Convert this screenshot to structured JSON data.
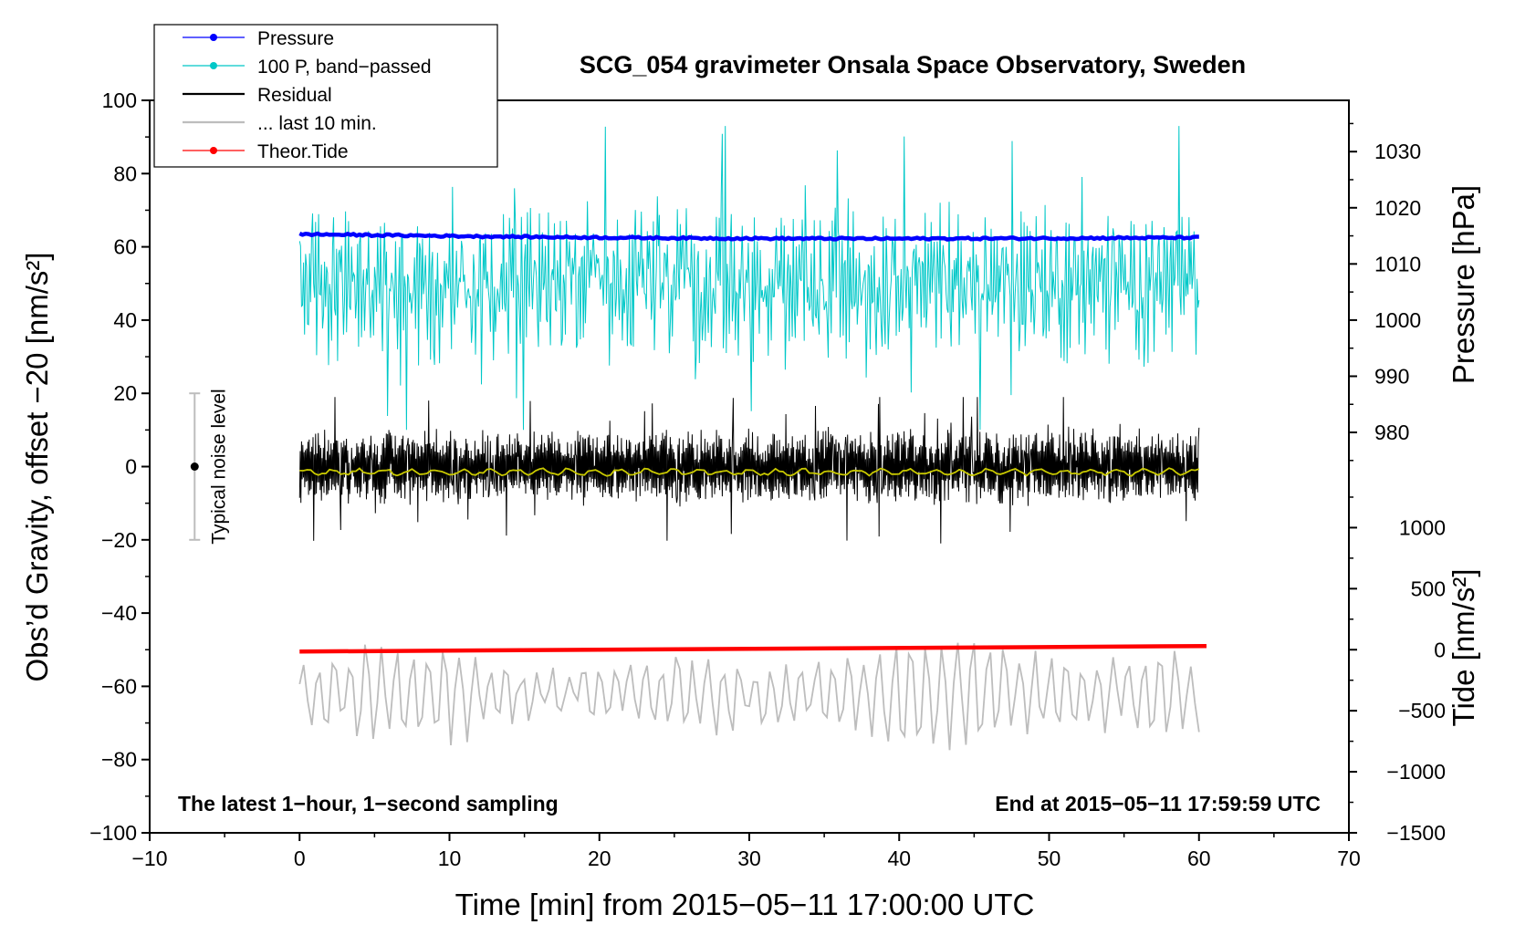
{
  "chart_data": {
    "type": "line",
    "title": "SCG_054 gravimeter Onsala Space Observatory, Sweden",
    "xlabel": "Time [min] from 2015−05−11 17:00:00 UTC",
    "ylabel_left": "Obs’d Gravity, offset −20 [nm/s²]",
    "ylabel_right_pressure": "Pressure [hPa]",
    "ylabel_right_tide": "Tide [nm/s²]",
    "xlim": [
      -10,
      70
    ],
    "ylim": [
      -100,
      100
    ],
    "x_ticks": [
      "−10",
      "0",
      "10",
      "20",
      "30",
      "40",
      "50",
      "60",
      "70"
    ],
    "y_ticks": [
      "−100",
      "−80",
      "−60",
      "−40",
      "−20",
      "0",
      "20",
      "40",
      "60",
      "80",
      "100"
    ],
    "pressure_axis": {
      "ticks": [
        "980",
        "990",
        "1000",
        "1010",
        "1020",
        "1030"
      ],
      "values": [
        980,
        990,
        1000,
        1010,
        1020,
        1030
      ],
      "gravity_at_1000": 40.0,
      "gravity_per_hpa": 1.5333
    },
    "tide_axis": {
      "ticks": [
        "−1500",
        "−1000",
        "−500",
        "0",
        "500",
        "1000"
      ],
      "values": [
        -1500,
        -1000,
        -500,
        0,
        500,
        1000
      ],
      "gravity_at_zero": -50.0,
      "gravity_per_unit": 0.03333
    },
    "legend": [
      {
        "label": "Pressure",
        "color": "#0000ff",
        "marker": true
      },
      {
        "label": "100 P, band−passed",
        "color": "#00c8c8",
        "marker": true
      },
      {
        "label": "Residual",
        "color": "#000000",
        "marker": false
      },
      {
        "label": "... last 10 min.",
        "color": "#bdbdbd",
        "marker": false
      },
      {
        "label": "Theor.Tide",
        "color": "#ff0000",
        "marker": true
      }
    ],
    "series": [
      {
        "name": "Pressure",
        "color": "#0000ff",
        "x_range": [
          0,
          60
        ],
        "start_hpa": 1015.3,
        "end_hpa": 1014.7,
        "min_hpa": 1014.3,
        "plotted_as_gravity": [
          69.5,
          68.5
        ]
      },
      {
        "name": "100 P, band−passed",
        "color": "#00c8c8",
        "x_range": [
          0,
          60
        ],
        "center_gravity": 50,
        "min_gravity": 10,
        "max_gravity": 93
      },
      {
        "name": "Residual",
        "color": "#000000",
        "x_range": [
          0,
          60
        ],
        "center_gravity": 0,
        "min_gravity": -21,
        "max_gravity": 19
      },
      {
        "name": "Residual smoothed",
        "color": "#c8c800",
        "x_range": [
          0,
          60
        ],
        "level_gravity": -1.5
      },
      {
        "name": "... last 10 min.",
        "color": "#bdbdbd",
        "x_range": [
          0,
          60
        ],
        "center_gravity": -62,
        "min_gravity": -81,
        "max_gravity": -42
      },
      {
        "name": "Theor.Tide",
        "color": "#ff0000",
        "x_range": [
          0,
          60.5
        ],
        "start_nm_s2": -15,
        "end_nm_s2": 30
      }
    ],
    "noise_bar": {
      "label": "Typical noise level",
      "x": -7,
      "center": 0,
      "low": -20,
      "high": 20
    },
    "annotations": {
      "bottom_left": "The latest 1−hour, 1−second sampling",
      "bottom_right": "End at 2015−05−11 17:59:59 UTC"
    }
  }
}
